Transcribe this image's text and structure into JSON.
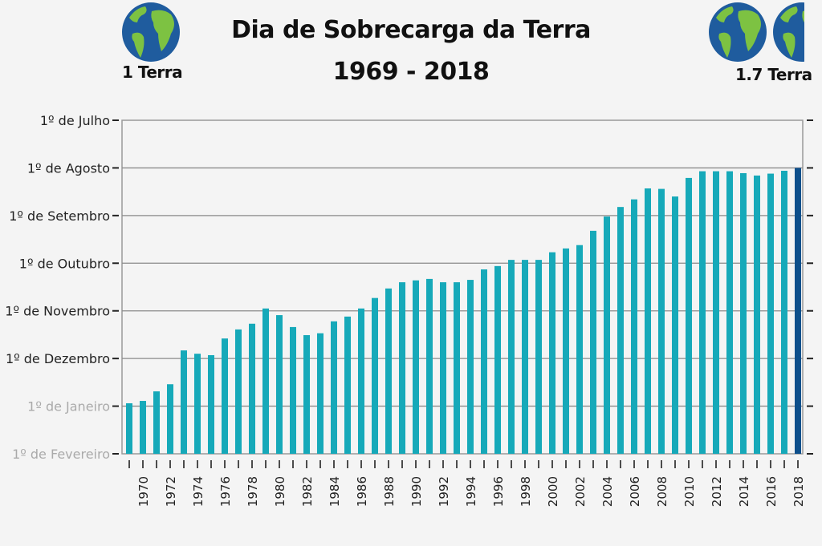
{
  "header": {
    "title_line1": "Dia de Sobrecarga da Terra",
    "title_line2": "1969 - 2018",
    "left_globe": {
      "icon": "earth-globe-icon",
      "count": 1,
      "label": "1 Terra"
    },
    "right_globe": {
      "icon": "earth-globe-icon",
      "count": 1.7,
      "label": "1.7 Terra"
    }
  },
  "colors": {
    "bar": "#16a9b9",
    "highlight_bar": "#0d4f8b",
    "grid": "#8a8a8a",
    "faded_label": "#aaaaaa",
    "label": "#222222",
    "globe_ocean": "#1f5c9e",
    "globe_land": "#7dc242"
  },
  "chart_data": {
    "type": "bar",
    "title": "Dia de Sobrecarga da Terra 1969 - 2018",
    "xlabel": "",
    "ylabel": "",
    "y_unit": "months earlier than 1º de Fevereiro (0 = 1º de Fevereiro, 7 = 1º de Julho)",
    "ylim": [
      0,
      7
    ],
    "yticks": [
      {
        "value": 0,
        "label": "1º de Fevereiro",
        "faded": true
      },
      {
        "value": 1,
        "label": "1º de Janeiro",
        "faded": true
      },
      {
        "value": 2,
        "label": "1º de Dezembro",
        "faded": false
      },
      {
        "value": 3,
        "label": "1º de Novembro",
        "faded": false
      },
      {
        "value": 4,
        "label": "1º de Outubro",
        "faded": false
      },
      {
        "value": 5,
        "label": "1º de Setembro",
        "faded": false
      },
      {
        "value": 6,
        "label": "1º de Agosto",
        "faded": false
      },
      {
        "value": 7,
        "label": "1º de Julho",
        "faded": false
      }
    ],
    "grid": true,
    "legend": "none",
    "categories": [
      1969,
      1970,
      1971,
      1972,
      1973,
      1974,
      1975,
      1976,
      1977,
      1978,
      1979,
      1980,
      1981,
      1982,
      1983,
      1984,
      1985,
      1986,
      1987,
      1988,
      1989,
      1990,
      1991,
      1992,
      1993,
      1994,
      1995,
      1996,
      1997,
      1998,
      1999,
      2000,
      2001,
      2002,
      2003,
      2004,
      2005,
      2006,
      2007,
      2008,
      2009,
      2010,
      2011,
      2012,
      2013,
      2014,
      2015,
      2016,
      2017,
      2018
    ],
    "xtick_labels": [
      "1970",
      "1972",
      "1974",
      "1976",
      "1978",
      "1980",
      "1982",
      "1984",
      "1986",
      "1988",
      "1990",
      "1992",
      "1994",
      "1996",
      "1998",
      "2000",
      "2002",
      "2004",
      "2006",
      "2008",
      "2010",
      "2012",
      "2014",
      "2016",
      "2018"
    ],
    "values": [
      1.06,
      1.11,
      1.31,
      1.46,
      2.17,
      2.1,
      2.07,
      2.42,
      2.61,
      2.73,
      3.05,
      2.91,
      2.66,
      2.49,
      2.53,
      2.78,
      2.88,
      3.05,
      3.27,
      3.47,
      3.6,
      3.64,
      3.67,
      3.6,
      3.6,
      3.65,
      3.87,
      3.94,
      4.07,
      4.07,
      4.07,
      4.23,
      4.31,
      4.38,
      4.68,
      4.98,
      5.18,
      5.34,
      5.57,
      5.56,
      5.4,
      5.79,
      5.93,
      5.93,
      5.93,
      5.89,
      5.84,
      5.88,
      5.94,
      6.0
    ],
    "highlight": {
      "category": 2018,
      "label": "1º de Agosto"
    }
  }
}
